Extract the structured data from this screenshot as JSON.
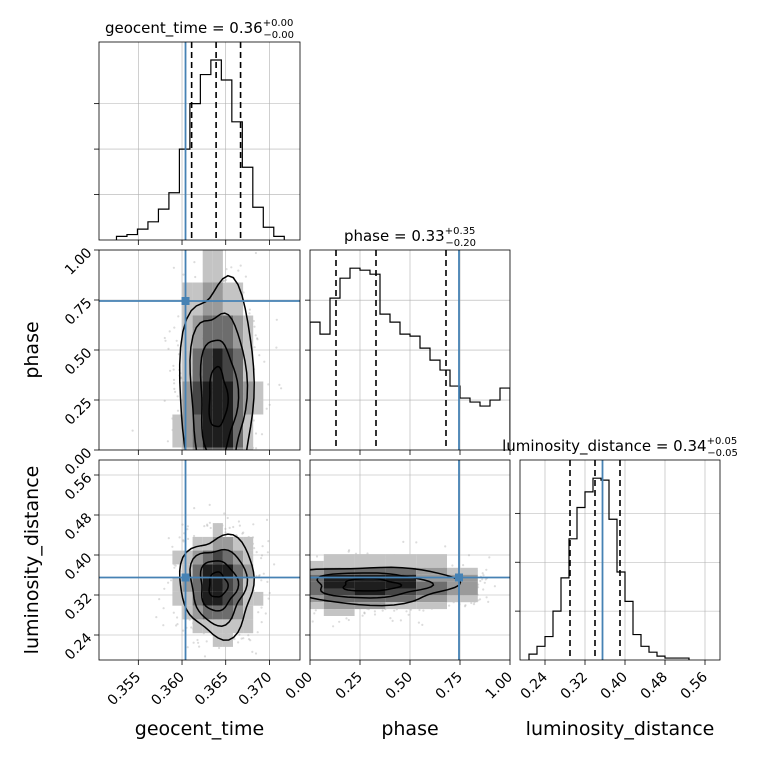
{
  "chart_data": {
    "type": "corner",
    "parameters": [
      "geocent_time",
      "phase",
      "luminosity_distance"
    ],
    "truths": {
      "geocent_time": 0.3604,
      "phase": 0.745,
      "luminosity_distance": 0.355
    },
    "colors": {
      "truth": "#4682b4",
      "line": "#000000",
      "grid": "#b0b0b0",
      "scatter": "#9a9a9a"
    },
    "axes": {
      "geocent_time": {
        "range": [
          0.3505,
          0.3735
        ],
        "ticks": [
          0.355,
          0.36,
          0.365,
          0.37
        ],
        "tick_labels": [
          "0.355",
          "0.360",
          "0.365",
          "0.370"
        ]
      },
      "phase": {
        "range": [
          0.0,
          1.0
        ],
        "ticks": [
          0.0,
          0.25,
          0.5,
          0.75,
          1.0
        ],
        "tick_labels": [
          "0.00",
          "0.25",
          "0.50",
          "0.75",
          "1.00"
        ]
      },
      "luminosity_distance": {
        "range": [
          0.19,
          0.59
        ],
        "ticks": [
          0.24,
          0.32,
          0.4,
          0.48,
          0.56
        ],
        "tick_labels": [
          "0.24",
          "0.32",
          "0.40",
          "0.48",
          "0.56"
        ]
      }
    },
    "marginals": [
      {
        "param": "geocent_time",
        "title_name": "geocent_time = 0.36",
        "sup": "+0.00",
        "sub": "−0.00",
        "quantiles": [
          0.3611,
          0.3639,
          0.3667
        ],
        "bin_edges": [
          0.3525,
          0.3537,
          0.3549,
          0.3561,
          0.3573,
          0.3585,
          0.3597,
          0.3609,
          0.3621,
          0.3633,
          0.3645,
          0.3657,
          0.3669,
          0.3681,
          0.3693,
          0.3705,
          0.3717
        ],
        "counts": [
          0.02,
          0.03,
          0.06,
          0.1,
          0.17,
          0.26,
          0.5,
          0.75,
          0.91,
          0.99,
          0.88,
          0.65,
          0.4,
          0.18,
          0.07,
          0.02
        ]
      },
      {
        "param": "phase",
        "title_name": "phase = 0.33",
        "sup": "+0.35",
        "sub": "−0.20",
        "quantiles": [
          0.13,
          0.33,
          0.68
        ],
        "bin_edges": [
          0.0,
          0.05,
          0.1,
          0.15,
          0.2,
          0.25,
          0.3,
          0.35,
          0.4,
          0.45,
          0.5,
          0.55,
          0.6,
          0.65,
          0.7,
          0.75,
          0.8,
          0.85,
          0.9,
          0.95,
          1.0
        ],
        "counts": [
          0.64,
          0.58,
          0.76,
          0.86,
          0.91,
          0.9,
          0.88,
          0.68,
          0.64,
          0.58,
          0.57,
          0.51,
          0.45,
          0.4,
          0.32,
          0.26,
          0.24,
          0.22,
          0.25,
          0.31
        ]
      },
      {
        "param": "luminosity_distance",
        "title_name": "luminosity_distance = 0.34",
        "sup": "+0.05",
        "sub": "−0.05",
        "quantiles": [
          0.29,
          0.34,
          0.39
        ],
        "bin_edges": [
          0.208,
          0.224,
          0.24,
          0.256,
          0.272,
          0.288,
          0.304,
          0.32,
          0.336,
          0.352,
          0.368,
          0.384,
          0.4,
          0.416,
          0.432,
          0.448,
          0.464,
          0.48,
          0.496,
          0.512,
          0.528
        ],
        "counts": [
          0.03,
          0.07,
          0.12,
          0.25,
          0.42,
          0.62,
          0.78,
          0.86,
          0.93,
          0.92,
          0.72,
          0.45,
          0.3,
          0.13,
          0.07,
          0.04,
          0.02,
          0.01,
          0.01,
          0.01
        ]
      }
    ],
    "joint": [
      {
        "x": "geocent_time",
        "y": "phase",
        "center": [
          0.3641,
          0.26
        ],
        "spread": [
          0.0021,
          0.3
        ],
        "levels": 4
      },
      {
        "x": "geocent_time",
        "y": "luminosity_distance",
        "center": [
          0.3641,
          0.34
        ],
        "spread": [
          0.0021,
          0.05
        ],
        "levels": 4
      },
      {
        "x": "phase",
        "y": "luminosity_distance",
        "center": [
          0.3,
          0.34
        ],
        "spread": [
          0.28,
          0.025
        ],
        "levels": 3
      }
    ],
    "xlabels": [
      "geocent_time",
      "phase",
      "luminosity_distance"
    ],
    "ylabels": [
      "",
      "phase",
      "luminosity_distance"
    ],
    "grid": true
  }
}
